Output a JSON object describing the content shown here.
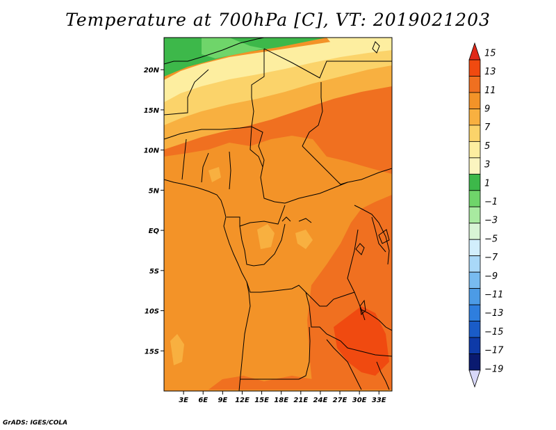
{
  "title": "Temperature at 700hPa [C], VT: 2019021203",
  "footer": "GrADS: IGES/COLA",
  "map": {
    "field": "Temperature at 700hPa",
    "units": "C",
    "valid_time": "2019021203",
    "lon_range": [
      0,
      35
    ],
    "lat_range": [
      -20,
      24
    ],
    "lat_ticks": [
      {
        "value": 20,
        "label": "20N"
      },
      {
        "value": 15,
        "label": "15N"
      },
      {
        "value": 10,
        "label": "10N"
      },
      {
        "value": 5,
        "label": "5N"
      },
      {
        "value": 0,
        "label": "EQ"
      },
      {
        "value": -5,
        "label": "5S"
      },
      {
        "value": -10,
        "label": "10S"
      },
      {
        "value": -15,
        "label": "15S"
      }
    ],
    "lon_ticks": [
      {
        "value": 3,
        "label": "3E"
      },
      {
        "value": 6,
        "label": "6E"
      },
      {
        "value": 9,
        "label": "9E"
      },
      {
        "value": 12,
        "label": "12E"
      },
      {
        "value": 15,
        "label": "15E"
      },
      {
        "value": 18,
        "label": "18E"
      },
      {
        "value": 21,
        "label": "21E"
      },
      {
        "value": 24,
        "label": "24E"
      },
      {
        "value": 27,
        "label": "27E"
      },
      {
        "value": 30,
        "label": "30E"
      },
      {
        "value": 33,
        "label": "33E"
      }
    ]
  },
  "colorbar": {
    "levels": [
      "15",
      "13",
      "11",
      "9",
      "7",
      "5",
      "3",
      "1",
      "−1",
      "−3",
      "−5",
      "−7",
      "−9",
      "−11",
      "−13",
      "−15",
      "−17",
      "−19"
    ],
    "colors": [
      "#e02818",
      "#f04a10",
      "#f07020",
      "#f39328",
      "#f8b040",
      "#fbd36a",
      "#fdeea0",
      "#fbf5c0",
      "#3db84a",
      "#6fd56a",
      "#a8eaa0",
      "#d8f5d5",
      "#d2eefc",
      "#a9d8f8",
      "#78bbf0",
      "#4c9be6",
      "#2e7ede",
      "#1a5cc8",
      "#0e3aa8",
      "#0a1a70",
      "#d8d8f8"
    ]
  },
  "colors": {
    "cool_green": "#3db84a",
    "light_green": "#6fd56a",
    "pale_yellow": "#fdeea0",
    "yellow": "#fbd36a",
    "orange": "#f39328",
    "dark_orange": "#f07020",
    "red_orange": "#f04a10",
    "red": "#e02818",
    "border": "#000000"
  }
}
